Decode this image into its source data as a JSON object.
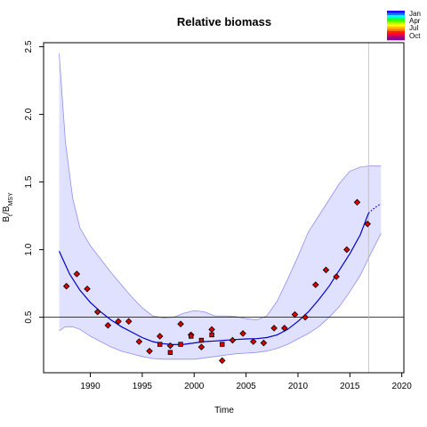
{
  "chart_data": {
    "type": "line",
    "title": "Relative biomass",
    "xlabel": "Time",
    "ylabel": {
      "main": "B",
      "sub1": "t",
      "mid": "/B",
      "sub2": "MSY"
    },
    "xlim": [
      1985.5,
      2020.2
    ],
    "ylim": [
      0.09,
      2.53
    ],
    "xticks": [
      1990,
      1995,
      2000,
      2005,
      2010,
      2015,
      2020
    ],
    "yticks": [
      0.5,
      1.0,
      1.5,
      2.0,
      2.5
    ],
    "xtick_labels": [
      "1990",
      "1995",
      "2000",
      "2005",
      "2010",
      "2015",
      "2020"
    ],
    "ytick_labels": [
      "0.5",
      "1.0",
      "1.5",
      "2.0",
      "2.5"
    ],
    "reference_line_y": 0.5,
    "vertical_marker_x": 2016.8,
    "grid": false,
    "legend": {
      "position": "top-right",
      "entries": [
        "Jan",
        "Apr",
        "Jul",
        "Oct"
      ],
      "colors": [
        "#2000ff",
        "#0080ff",
        "#00ffff",
        "#00ff80",
        "#40ff00",
        "#c0ff00",
        "#ffff00",
        "#ffc000",
        "#ff8000",
        "#ff2000",
        "#ff0040",
        "#c00060",
        "#8000a0"
      ]
    },
    "colors": {
      "band_fill": "#e0e0ff",
      "band_edge": "#9090ee",
      "line": "#0000cc",
      "point_fill": "#dd0000",
      "point_edge": "#000000",
      "vline": "#bbbbbb"
    },
    "series": [
      {
        "name": "median",
        "x": [
          1987,
          1988,
          1989,
          1990,
          1991,
          1992,
          1993,
          1994,
          1995,
          1996,
          1997,
          1998,
          1999,
          2000,
          2001,
          2002,
          2003,
          2004,
          2005,
          2006,
          2007,
          2008,
          2009,
          2010,
          2011,
          2012,
          2013,
          2014,
          2015,
          2016,
          2016.8
        ],
        "y": [
          0.99,
          0.82,
          0.7,
          0.61,
          0.54,
          0.48,
          0.43,
          0.39,
          0.35,
          0.32,
          0.305,
          0.298,
          0.3,
          0.31,
          0.32,
          0.325,
          0.33,
          0.335,
          0.34,
          0.342,
          0.35,
          0.37,
          0.41,
          0.47,
          0.54,
          0.63,
          0.73,
          0.85,
          0.97,
          1.11,
          1.27
        ]
      },
      {
        "name": "projection",
        "x": [
          2016.8,
          2017.4,
          2018
        ],
        "y": [
          1.27,
          1.31,
          1.34
        ]
      }
    ],
    "band": {
      "x": [
        1987,
        1987.6,
        1988.3,
        1989,
        1990,
        1991,
        1992,
        1993,
        1994,
        1995,
        1996,
        1997,
        1998,
        1999,
        2000,
        2001,
        2002,
        2003,
        2004,
        2005,
        2006,
        2007,
        2008,
        2009,
        2010,
        2011,
        2012,
        2013,
        2014,
        2015,
        2016,
        2017,
        2018
      ],
      "upper": [
        2.45,
        1.8,
        1.38,
        1.16,
        1.03,
        0.93,
        0.83,
        0.74,
        0.65,
        0.57,
        0.51,
        0.495,
        0.5,
        0.53,
        0.55,
        0.54,
        0.51,
        0.51,
        0.505,
        0.49,
        0.48,
        0.51,
        0.62,
        0.78,
        0.95,
        1.13,
        1.25,
        1.37,
        1.49,
        1.58,
        1.61,
        1.62,
        1.62
      ],
      "lower": [
        0.4,
        0.43,
        0.43,
        0.41,
        0.36,
        0.32,
        0.28,
        0.25,
        0.23,
        0.21,
        0.195,
        0.19,
        0.19,
        0.19,
        0.19,
        0.2,
        0.21,
        0.22,
        0.23,
        0.235,
        0.24,
        0.25,
        0.27,
        0.3,
        0.34,
        0.38,
        0.43,
        0.5,
        0.58,
        0.69,
        0.81,
        0.97,
        1.12
      ]
    },
    "points_diamond": {
      "x": [
        1987.7,
        1988.7,
        1989.7,
        1990.7,
        1991.7,
        1992.7,
        1993.7,
        1994.7,
        1995.7,
        1996.7,
        1997.7,
        1998.7,
        1999.7,
        2000.7,
        2001.7,
        2002.7,
        2003.7,
        2004.7,
        2005.7,
        2006.7,
        2007.7,
        2008.7,
        2009.7,
        2010.7,
        2011.7,
        2012.7,
        2013.7,
        2014.7,
        2015.7,
        2016.7
      ],
      "y": [
        0.73,
        0.82,
        0.71,
        0.54,
        0.44,
        0.47,
        0.47,
        0.32,
        0.25,
        0.36,
        0.29,
        0.45,
        0.37,
        0.28,
        0.41,
        0.18,
        0.33,
        0.38,
        0.32,
        0.31,
        0.42,
        0.42,
        0.52,
        0.5,
        0.74,
        0.85,
        0.8,
        1.0,
        1.35,
        1.19
      ]
    },
    "points_square": {
      "x": [
        1996.7,
        1997.7,
        1998.7,
        1999.7,
        2000.7,
        2001.7,
        2002.7
      ],
      "y": [
        0.3,
        0.24,
        0.3,
        0.36,
        0.33,
        0.37,
        0.3
      ]
    }
  }
}
